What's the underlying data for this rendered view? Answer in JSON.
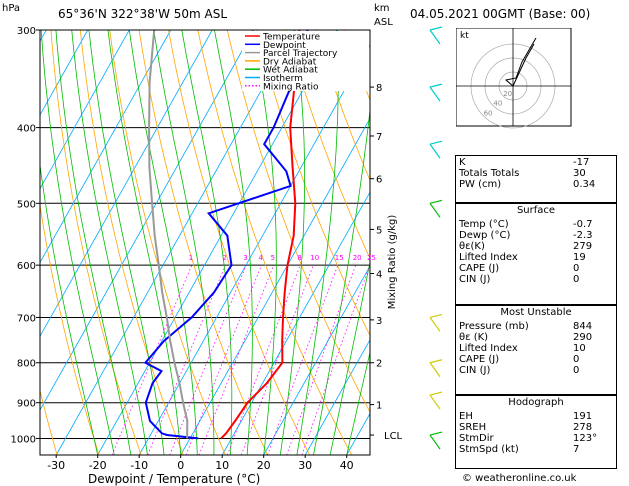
{
  "header": {
    "pressure_unit": "hPa",
    "location": "65°36'N  322°38'W  50m  ASL",
    "alt_unit_top": "km",
    "alt_unit_bottom": "ASL",
    "datetime": "04.05.2021  00GMT  (Base: 00)"
  },
  "chart_data": {
    "type": "line",
    "title": "",
    "xlabel": "Dewpoint / Temperature (°C)",
    "ylabel": "hPa",
    "y_scale": "log",
    "xlim": [
      -35,
      43
    ],
    "ylim": [
      1050,
      300
    ],
    "pressure_ticks": [
      "300",
      "400",
      "500",
      "600",
      "700",
      "800",
      "900",
      "1000"
    ],
    "temperature_ticks": [
      "-30",
      "-20",
      "-10",
      "0",
      "10",
      "20",
      "30",
      "40"
    ],
    "altitude_ticks": [
      {
        "label": "8",
        "p": 355
      },
      {
        "label": "7",
        "p": 410
      },
      {
        "label": "6",
        "p": 465
      },
      {
        "label": "5",
        "p": 540
      },
      {
        "label": "4",
        "p": 615
      },
      {
        "label": "3",
        "p": 705
      },
      {
        "label": "2",
        "p": 800
      },
      {
        "label": "1",
        "p": 905
      },
      {
        "label": "LCL",
        "p": 990
      }
    ],
    "mixing_ratio_axis_label": "Mixing Ratio (g/kg)",
    "mixing_ratio_labels": [
      "1",
      "2",
      "3",
      "4",
      "5",
      "8",
      "10",
      "15",
      "20",
      "25"
    ],
    "legend": [
      "Temperature",
      "Dewpoint",
      "Parcel Trajectory",
      "Dry Adiabat",
      "Wet Adiabat",
      "Isotherm",
      "Mixing Ratio"
    ],
    "legend_colors": [
      "#ff0000",
      "#0000ff",
      "#999999",
      "#ffa500",
      "#00bb00",
      "#00aaff",
      "#ff00ff"
    ],
    "series": [
      {
        "name": "Temperature",
        "p": [
          1000,
          985,
          950,
          900,
          850,
          800,
          750,
          700,
          650,
          600,
          550,
          500,
          450,
          400,
          350,
          300
        ],
        "t": [
          7.5,
          8.0,
          8.5,
          9.0,
          11.0,
          12.0,
          9.0,
          6.0,
          3.0,
          0.0,
          -2.5,
          -6.5,
          -12.0,
          -18.0,
          -23.0,
          -29.0
        ]
      },
      {
        "name": "Dewpoint",
        "p": [
          1000,
          990,
          985,
          950,
          900,
          850,
          820,
          800,
          750,
          700,
          650,
          600,
          550,
          515,
          475,
          455,
          420,
          400,
          350,
          300
        ],
        "t": [
          2.0,
          -6.0,
          -7.5,
          -12.0,
          -15.5,
          -16.5,
          -16.0,
          -21.0,
          -19.5,
          -16.0,
          -14.0,
          -13.5,
          -18.5,
          -26.0,
          -10.0,
          -13.0,
          -22.0,
          -22.0,
          -23.5,
          -27.0
        ]
      },
      {
        "name": "Parcel Trajectory",
        "p": [
          1000,
          950,
          900,
          850,
          800,
          750,
          700,
          650,
          600,
          550,
          500,
          450,
          400,
          350,
          300
        ],
        "t": [
          -0.7,
          -3.0,
          -6.5,
          -10.0,
          -14.0,
          -18.0,
          -22.0,
          -26.5,
          -31.0,
          -36.0,
          -41.0,
          -46.5,
          -52.0,
          -58.0,
          -64.0
        ]
      }
    ]
  },
  "indices": {
    "k_label": "K",
    "k_value": "-17",
    "tt_label": "Totals Totals",
    "tt_value": "30",
    "pw_label": "PW (cm)",
    "pw_value": "0.34"
  },
  "surface": {
    "title": "Surface",
    "rows": [
      {
        "label": "Temp (°C)",
        "value": "-0.7"
      },
      {
        "label": "Dewp (°C)",
        "value": "-2.3"
      },
      {
        "label": "θε(K)",
        "value": "279"
      },
      {
        "label": "Lifted Index",
        "value": "19"
      },
      {
        "label": "CAPE (J)",
        "value": "0"
      },
      {
        "label": "CIN (J)",
        "value": "0"
      }
    ]
  },
  "unstable": {
    "title": "Most Unstable",
    "rows": [
      {
        "label": "Pressure (mb)",
        "value": "844"
      },
      {
        "label": "θε (K)",
        "value": "290"
      },
      {
        "label": "Lifted Index",
        "value": "10"
      },
      {
        "label": "CAPE (J)",
        "value": "0"
      },
      {
        "label": "CIN (J)",
        "value": "0"
      }
    ]
  },
  "hodograph_table": {
    "title": "Hodograph",
    "rows": [
      {
        "label": "EH",
        "value": "191"
      },
      {
        "label": "SREH",
        "value": "278"
      },
      {
        "label": "StmDir",
        "value": "123°"
      },
      {
        "label": "StmSpd (kt)",
        "value": "7"
      }
    ]
  },
  "hodograph_plot": {
    "unit_label": "kt",
    "ring_labels": [
      "20",
      "40",
      "60"
    ]
  },
  "footer": {
    "credit": "© weatheronline.co.uk"
  }
}
